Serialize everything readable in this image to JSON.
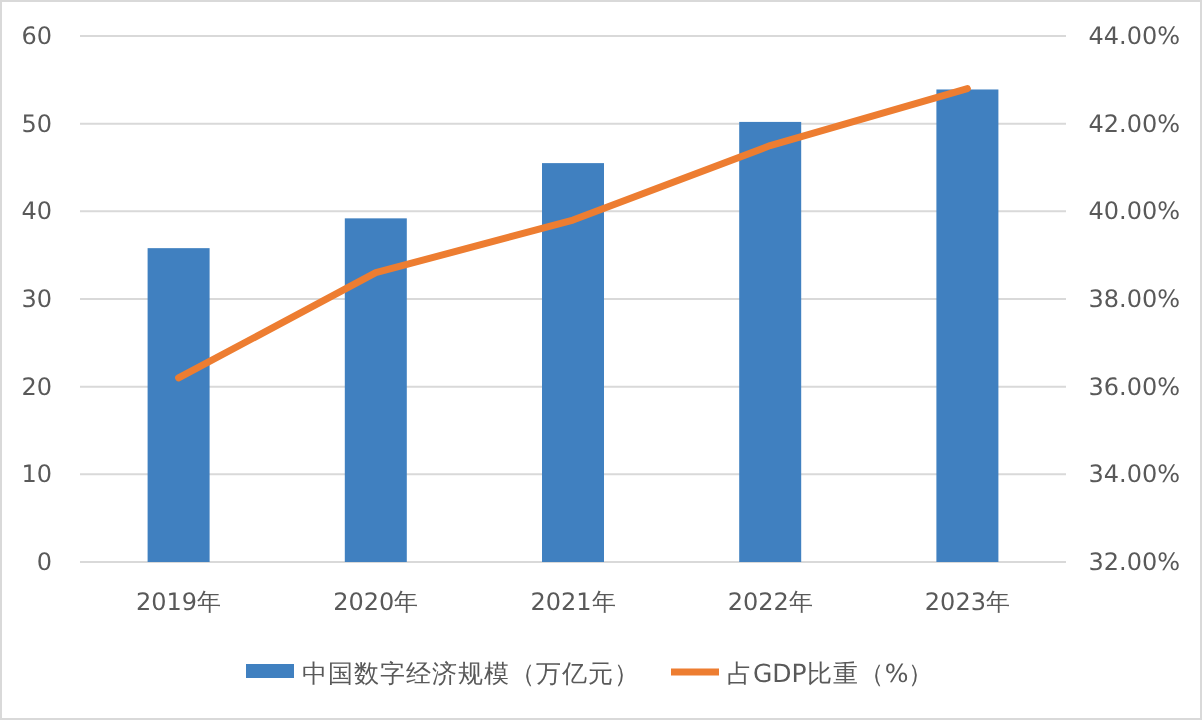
{
  "chart_data": {
    "type": "bar",
    "categories": [
      "2019年",
      "2020年",
      "2021年",
      "2022年",
      "2023年"
    ],
    "series": [
      {
        "name": "中国数字经济规模（万亿元）",
        "color": "#4080c0",
        "values": [
          35.8,
          39.2,
          45.5,
          50.2,
          53.9
        ]
      },
      {
        "name": "占GDP比重（%）",
        "type": "line",
        "axis": "y2",
        "color": "#ed7d31",
        "values": [
          36.2,
          38.6,
          39.8,
          41.5,
          42.8
        ]
      }
    ],
    "ylim": [
      0,
      60
    ],
    "yticks": [
      0,
      10,
      20,
      30,
      40,
      50,
      60
    ],
    "y2lim": [
      32,
      44
    ],
    "y2ticks": [
      {
        "value": 32,
        "label": "32.00%"
      },
      {
        "value": 34,
        "label": "34.00%"
      },
      {
        "value": 36,
        "label": "36.00%"
      },
      {
        "value": 38,
        "label": "38.00%"
      },
      {
        "value": 40,
        "label": "40.00%"
      },
      {
        "value": 42,
        "label": "42.00%"
      },
      {
        "value": 44,
        "label": "44.00%"
      }
    ],
    "grid": "y",
    "legend": "bottom"
  }
}
